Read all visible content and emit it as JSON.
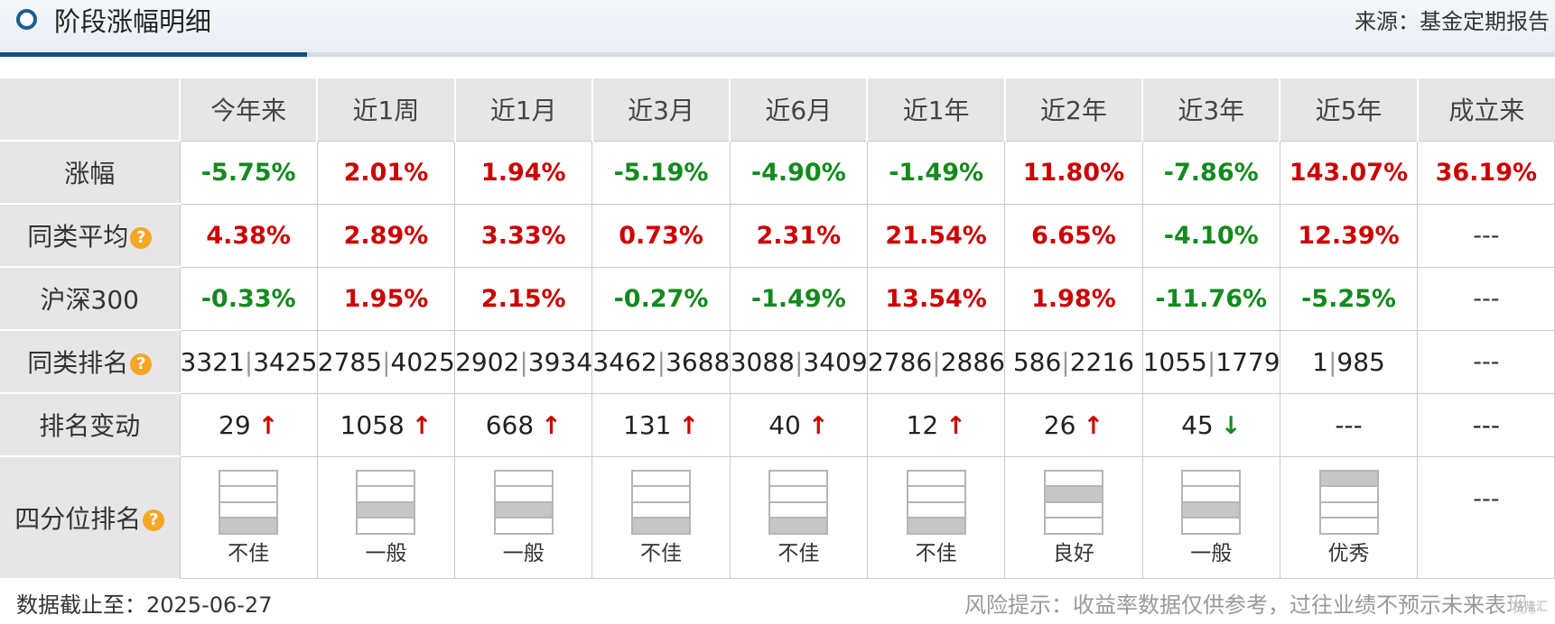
{
  "header": {
    "title": "阶段涨幅明细",
    "source": "来源：基金定期报告"
  },
  "columns": [
    "今年来",
    "近1周",
    "近1月",
    "近3月",
    "近6月",
    "近1年",
    "近2年",
    "近3年",
    "近5年",
    "成立来"
  ],
  "rows": {
    "returns": {
      "label": "涨幅",
      "values": [
        {
          "text": "-5.75%",
          "dir": "neg"
        },
        {
          "text": "2.01%",
          "dir": "pos"
        },
        {
          "text": "1.94%",
          "dir": "pos"
        },
        {
          "text": "-5.19%",
          "dir": "neg"
        },
        {
          "text": "-4.90%",
          "dir": "neg"
        },
        {
          "text": "-1.49%",
          "dir": "neg"
        },
        {
          "text": "11.80%",
          "dir": "pos"
        },
        {
          "text": "-7.86%",
          "dir": "neg"
        },
        {
          "text": "143.07%",
          "dir": "pos"
        },
        {
          "text": "36.19%",
          "dir": "pos"
        }
      ]
    },
    "peer_avg": {
      "label": "同类平均",
      "values": [
        {
          "text": "4.38%",
          "dir": "pos"
        },
        {
          "text": "2.89%",
          "dir": "pos"
        },
        {
          "text": "3.33%",
          "dir": "pos"
        },
        {
          "text": "0.73%",
          "dir": "pos"
        },
        {
          "text": "2.31%",
          "dir": "pos"
        },
        {
          "text": "21.54%",
          "dir": "pos"
        },
        {
          "text": "6.65%",
          "dir": "pos"
        },
        {
          "text": "-4.10%",
          "dir": "neg"
        },
        {
          "text": "12.39%",
          "dir": "pos"
        },
        {
          "text": "---",
          "dir": "neutral"
        }
      ]
    },
    "hs300": {
      "label": "沪深300",
      "values": [
        {
          "text": "-0.33%",
          "dir": "neg"
        },
        {
          "text": "1.95%",
          "dir": "pos"
        },
        {
          "text": "2.15%",
          "dir": "pos"
        },
        {
          "text": "-0.27%",
          "dir": "neg"
        },
        {
          "text": "-1.49%",
          "dir": "neg"
        },
        {
          "text": "13.54%",
          "dir": "pos"
        },
        {
          "text": "1.98%",
          "dir": "pos"
        },
        {
          "text": "-11.76%",
          "dir": "neg"
        },
        {
          "text": "-5.25%",
          "dir": "neg"
        },
        {
          "text": "---",
          "dir": "neutral"
        }
      ]
    },
    "peer_rank": {
      "label": "同类排名",
      "values": [
        {
          "rank": "3321",
          "total": "3425"
        },
        {
          "rank": "2785",
          "total": "4025"
        },
        {
          "rank": "2902",
          "total": "3934"
        },
        {
          "rank": "3462",
          "total": "3688"
        },
        {
          "rank": "3088",
          "total": "3409"
        },
        {
          "rank": "2786",
          "total": "2886"
        },
        {
          "rank": "586",
          "total": "2216"
        },
        {
          "rank": "1055",
          "total": "1779"
        },
        {
          "rank": "1",
          "total": "985"
        },
        {
          "text": "---"
        }
      ]
    },
    "rank_change": {
      "label": "排名变动",
      "values": [
        {
          "text": "29",
          "arrow": "↑",
          "dir": "up"
        },
        {
          "text": "1058",
          "arrow": "↑",
          "dir": "up"
        },
        {
          "text": "668",
          "arrow": "↑",
          "dir": "up"
        },
        {
          "text": "131",
          "arrow": "↑",
          "dir": "up"
        },
        {
          "text": "40",
          "arrow": "↑",
          "dir": "up"
        },
        {
          "text": "12",
          "arrow": "↑",
          "dir": "up"
        },
        {
          "text": "26",
          "arrow": "↑",
          "dir": "up"
        },
        {
          "text": "45",
          "arrow": "↓",
          "dir": "down"
        },
        {
          "text": "---",
          "arrow": "",
          "dir": "none"
        },
        {
          "text": "---",
          "arrow": "",
          "dir": "none"
        }
      ]
    },
    "quartile": {
      "label": "四分位排名",
      "values": [
        {
          "quartile": 4,
          "text": "不佳"
        },
        {
          "quartile": 3,
          "text": "一般"
        },
        {
          "quartile": 3,
          "text": "一般"
        },
        {
          "quartile": 4,
          "text": "不佳"
        },
        {
          "quartile": 4,
          "text": "不佳"
        },
        {
          "quartile": 4,
          "text": "不佳"
        },
        {
          "quartile": 2,
          "text": "良好"
        },
        {
          "quartile": 3,
          "text": "一般"
        },
        {
          "quartile": 1,
          "text": "优秀"
        },
        {
          "quartile": 0,
          "text": "---"
        }
      ]
    }
  },
  "help_icon_glyph": "?",
  "footer": {
    "date": "数据截止至：2025-06-27",
    "risk": "风险提示：收益率数据仅供参考，过往业绩不预示未来表现。"
  },
  "watermark": "格隆汇",
  "colors": {
    "positive": "#cc0000",
    "negative": "#138a1e",
    "header_accent": "#13507e",
    "quartile_fill": "#c6c6c6",
    "help_icon": "#f6a623"
  }
}
